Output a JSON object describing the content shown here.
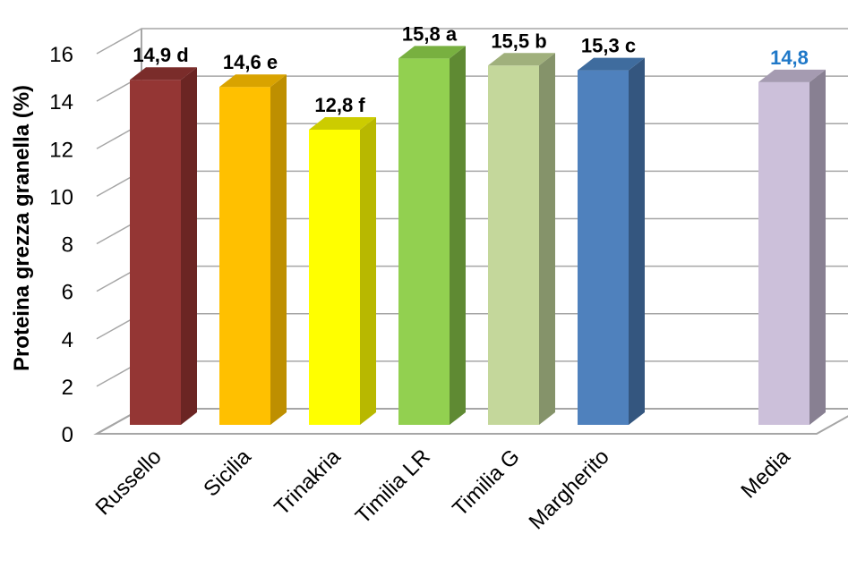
{
  "chart_data": {
    "type": "bar",
    "title": "",
    "ylabel": "Proteina grezza granella (%)",
    "xlabel": "",
    "ylim": [
      0,
      16
    ],
    "yticks": [
      0,
      2,
      4,
      6,
      8,
      10,
      12,
      14,
      16
    ],
    "grid": true,
    "legend": "none",
    "categories": [
      "Russello",
      "Sicilia",
      "Trinakria",
      "Timilia LR",
      "Timilia G",
      "Margherito",
      "Media"
    ],
    "values": [
      14.9,
      14.6,
      12.8,
      15.8,
      15.5,
      15.3,
      14.8
    ],
    "labels": [
      "14,9 d",
      "14,6 e",
      "12,8 f",
      "15,8 a",
      "15,5 b",
      "15,3 c",
      "14,8"
    ],
    "label_colors": [
      "#000000",
      "#000000",
      "#000000",
      "#000000",
      "#000000",
      "#000000",
      "#1F78C8"
    ],
    "colors": [
      {
        "front": "#943634",
        "side": "#6B2523",
        "top": "#7A2C2A"
      },
      {
        "front": "#FFC000",
        "side": "#BE8F00",
        "top": "#D9A300"
      },
      {
        "front": "#FFFF00",
        "side": "#B8B800",
        "top": "#CCCC00"
      },
      {
        "front": "#92D050",
        "side": "#5F8A33",
        "top": "#78B040"
      },
      {
        "front": "#C4D79B",
        "side": "#85936A",
        "top": "#A0B07C"
      },
      {
        "front": "#4F81BD",
        "side": "#34567F",
        "top": "#3F6C9E"
      },
      {
        "front": "#CCC0DA",
        "side": "#888092",
        "top": "#A59BB1"
      }
    ]
  }
}
